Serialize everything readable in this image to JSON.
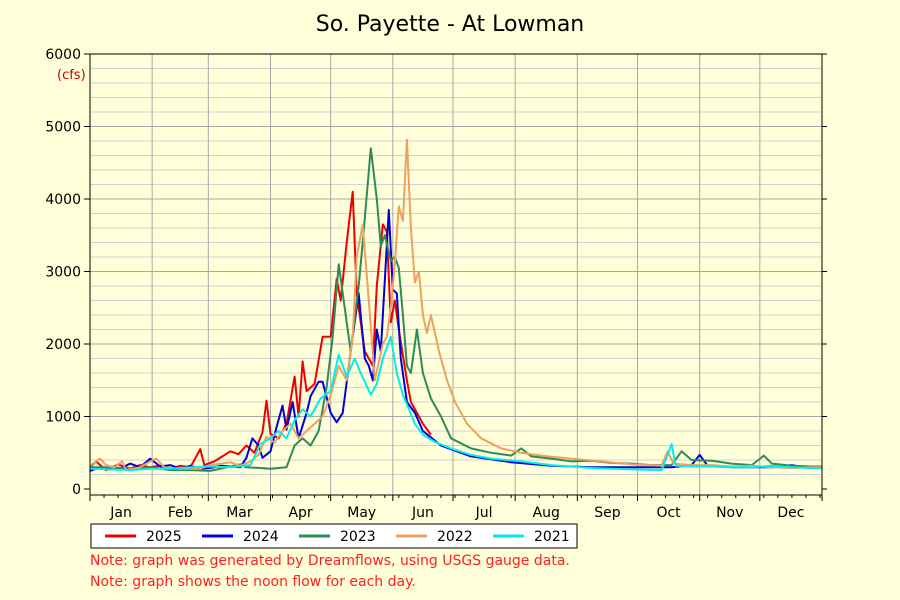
{
  "chart_data": {
    "type": "line",
    "title": "So. Payette - At Lowman",
    "ylabel": "(cfs)",
    "xlabel": "",
    "ylim": [
      0,
      6000
    ],
    "xlim": [
      0,
      365
    ],
    "yticks": [
      0,
      1000,
      2000,
      3000,
      4000,
      5000,
      6000
    ],
    "months": [
      "Jan",
      "Feb",
      "Mar",
      "Apr",
      "May",
      "Jun",
      "Jul",
      "Aug",
      "Sep",
      "Oct",
      "Nov",
      "Dec"
    ],
    "grid": true,
    "legend_position": "bottom-left",
    "series": [
      {
        "name": "2025",
        "color": "#ee0000",
        "points": [
          [
            0,
            300
          ],
          [
            3,
            380
          ],
          [
            8,
            260
          ],
          [
            14,
            340
          ],
          [
            20,
            280
          ],
          [
            25,
            330
          ],
          [
            30,
            300
          ],
          [
            35,
            320
          ],
          [
            40,
            280
          ],
          [
            45,
            320
          ],
          [
            50,
            300
          ],
          [
            55,
            550
          ],
          [
            57,
            330
          ],
          [
            62,
            380
          ],
          [
            66,
            450
          ],
          [
            70,
            520
          ],
          [
            74,
            480
          ],
          [
            78,
            600
          ],
          [
            82,
            500
          ],
          [
            86,
            780
          ],
          [
            88,
            1220
          ],
          [
            90,
            760
          ],
          [
            94,
            700
          ],
          [
            98,
            900
          ],
          [
            102,
            1550
          ],
          [
            104,
            1000
          ],
          [
            106,
            1760
          ],
          [
            108,
            1350
          ],
          [
            112,
            1450
          ],
          [
            116,
            2100
          ],
          [
            120,
            2100
          ],
          [
            123,
            2900
          ],
          [
            125,
            2600
          ],
          [
            128,
            3400
          ],
          [
            131,
            4100
          ],
          [
            133,
            2700
          ],
          [
            137,
            1900
          ],
          [
            141,
            1700
          ],
          [
            143,
            2800
          ],
          [
            146,
            3650
          ],
          [
            148,
            3550
          ],
          [
            150,
            2300
          ],
          [
            152,
            2600
          ],
          [
            154,
            2200
          ],
          [
            158,
            1500
          ],
          [
            160,
            1200
          ],
          [
            164,
            1000
          ],
          [
            166,
            900
          ],
          [
            170,
            750
          ]
        ]
      },
      {
        "name": "2024",
        "color": "#0000dd",
        "points": [
          [
            0,
            250
          ],
          [
            5,
            300
          ],
          [
            10,
            270
          ],
          [
            15,
            280
          ],
          [
            20,
            350
          ],
          [
            25,
            300
          ],
          [
            30,
            420
          ],
          [
            35,
            310
          ],
          [
            40,
            330
          ],
          [
            45,
            280
          ],
          [
            50,
            320
          ],
          [
            55,
            280
          ],
          [
            60,
            290
          ],
          [
            65,
            320
          ],
          [
            70,
            310
          ],
          [
            75,
            300
          ],
          [
            78,
            430
          ],
          [
            81,
            700
          ],
          [
            84,
            600
          ],
          [
            86,
            430
          ],
          [
            90,
            520
          ],
          [
            93,
            850
          ],
          [
            96,
            1150
          ],
          [
            98,
            820
          ],
          [
            101,
            1200
          ],
          [
            104,
            700
          ],
          [
            108,
            1050
          ],
          [
            110,
            1280
          ],
          [
            114,
            1480
          ],
          [
            116,
            1480
          ],
          [
            120,
            1050
          ],
          [
            123,
            920
          ],
          [
            126,
            1050
          ],
          [
            130,
            1900
          ],
          [
            134,
            2700
          ],
          [
            137,
            1800
          ],
          [
            139,
            1700
          ],
          [
            141,
            1500
          ],
          [
            143,
            2200
          ],
          [
            145,
            1900
          ],
          [
            149,
            3850
          ],
          [
            151,
            2750
          ],
          [
            153,
            2700
          ],
          [
            155,
            1800
          ],
          [
            158,
            1200
          ],
          [
            162,
            1050
          ],
          [
            166,
            800
          ],
          [
            175,
            600
          ],
          [
            190,
            450
          ],
          [
            210,
            370
          ],
          [
            230,
            320
          ],
          [
            250,
            300
          ],
          [
            270,
            300
          ],
          [
            290,
            300
          ],
          [
            300,
            330
          ],
          [
            304,
            470
          ],
          [
            308,
            320
          ],
          [
            320,
            300
          ],
          [
            330,
            300
          ],
          [
            340,
            300
          ],
          [
            350,
            330
          ],
          [
            356,
            300
          ],
          [
            365,
            310
          ]
        ]
      },
      {
        "name": "2023",
        "color": "#2e8b57",
        "points": [
          [
            0,
            300
          ],
          [
            10,
            300
          ],
          [
            20,
            280
          ],
          [
            30,
            300
          ],
          [
            40,
            260
          ],
          [
            50,
            260
          ],
          [
            60,
            250
          ],
          [
            70,
            310
          ],
          [
            75,
            340
          ],
          [
            78,
            300
          ],
          [
            85,
            290
          ],
          [
            90,
            280
          ],
          [
            98,
            300
          ],
          [
            102,
            600
          ],
          [
            106,
            700
          ],
          [
            110,
            600
          ],
          [
            114,
            800
          ],
          [
            118,
            1400
          ],
          [
            121,
            2100
          ],
          [
            124,
            3100
          ],
          [
            127,
            2500
          ],
          [
            130,
            1900
          ],
          [
            134,
            2800
          ],
          [
            136,
            3400
          ],
          [
            140,
            4700
          ],
          [
            143,
            4000
          ],
          [
            145,
            3350
          ],
          [
            147,
            3500
          ],
          [
            150,
            3150
          ],
          [
            152,
            3200
          ],
          [
            154,
            3050
          ],
          [
            156,
            2400
          ],
          [
            158,
            1700
          ],
          [
            160,
            1600
          ],
          [
            163,
            2200
          ],
          [
            166,
            1600
          ],
          [
            170,
            1250
          ],
          [
            175,
            1000
          ],
          [
            180,
            700
          ],
          [
            190,
            560
          ],
          [
            200,
            500
          ],
          [
            210,
            460
          ],
          [
            215,
            560
          ],
          [
            220,
            450
          ],
          [
            230,
            420
          ],
          [
            240,
            380
          ],
          [
            250,
            390
          ],
          [
            260,
            360
          ],
          [
            270,
            350
          ],
          [
            280,
            330
          ],
          [
            290,
            330
          ],
          [
            295,
            520
          ],
          [
            300,
            400
          ],
          [
            310,
            390
          ],
          [
            320,
            350
          ],
          [
            330,
            330
          ],
          [
            336,
            460
          ],
          [
            340,
            350
          ],
          [
            350,
            320
          ],
          [
            360,
            310
          ],
          [
            365,
            310
          ]
        ]
      },
      {
        "name": "2022",
        "color": "#f0a060",
        "points": [
          [
            0,
            320
          ],
          [
            5,
            420
          ],
          [
            8,
            330
          ],
          [
            12,
            300
          ],
          [
            16,
            380
          ],
          [
            18,
            260
          ],
          [
            25,
            300
          ],
          [
            30,
            380
          ],
          [
            33,
            420
          ],
          [
            37,
            300
          ],
          [
            45,
            280
          ],
          [
            55,
            280
          ],
          [
            60,
            330
          ],
          [
            70,
            370
          ],
          [
            75,
            320
          ],
          [
            80,
            380
          ],
          [
            84,
            470
          ],
          [
            88,
            720
          ],
          [
            92,
            640
          ],
          [
            96,
            800
          ],
          [
            100,
            900
          ],
          [
            104,
            700
          ],
          [
            108,
            800
          ],
          [
            112,
            900
          ],
          [
            116,
            1000
          ],
          [
            120,
            1300
          ],
          [
            124,
            1700
          ],
          [
            128,
            1500
          ],
          [
            131,
            2100
          ],
          [
            133,
            3200
          ],
          [
            136,
            3650
          ],
          [
            139,
            2600
          ],
          [
            142,
            1500
          ],
          [
            146,
            2000
          ],
          [
            148,
            2100
          ],
          [
            150,
            2500
          ],
          [
            152,
            3100
          ],
          [
            154,
            3900
          ],
          [
            156,
            3700
          ],
          [
            158,
            4820
          ],
          [
            160,
            3600
          ],
          [
            162,
            2850
          ],
          [
            164,
            3000
          ],
          [
            166,
            2400
          ],
          [
            168,
            2150
          ],
          [
            170,
            2400
          ],
          [
            174,
            1900
          ],
          [
            178,
            1500
          ],
          [
            182,
            1200
          ],
          [
            188,
            900
          ],
          [
            195,
            700
          ],
          [
            205,
            560
          ],
          [
            215,
            500
          ],
          [
            225,
            460
          ],
          [
            240,
            420
          ],
          [
            255,
            380
          ],
          [
            270,
            340
          ],
          [
            285,
            320
          ],
          [
            288,
            520
          ],
          [
            291,
            350
          ],
          [
            300,
            330
          ],
          [
            310,
            330
          ],
          [
            320,
            310
          ],
          [
            330,
            320
          ],
          [
            340,
            300
          ],
          [
            350,
            290
          ],
          [
            360,
            300
          ],
          [
            365,
            300
          ]
        ]
      },
      {
        "name": "2021",
        "color": "#00eeee",
        "points": [
          [
            0,
            280
          ],
          [
            10,
            270
          ],
          [
            20,
            260
          ],
          [
            30,
            280
          ],
          [
            40,
            280
          ],
          [
            50,
            300
          ],
          [
            60,
            310
          ],
          [
            70,
            300
          ],
          [
            80,
            330
          ],
          [
            85,
            620
          ],
          [
            90,
            700
          ],
          [
            94,
            800
          ],
          [
            98,
            700
          ],
          [
            102,
            950
          ],
          [
            106,
            1100
          ],
          [
            110,
            1000
          ],
          [
            115,
            1250
          ],
          [
            120,
            1350
          ],
          [
            124,
            1850
          ],
          [
            128,
            1550
          ],
          [
            132,
            1800
          ],
          [
            135,
            1600
          ],
          [
            140,
            1300
          ],
          [
            143,
            1450
          ],
          [
            146,
            1800
          ],
          [
            150,
            2100
          ],
          [
            153,
            1600
          ],
          [
            156,
            1300
          ],
          [
            159,
            1100
          ],
          [
            162,
            900
          ],
          [
            166,
            750
          ],
          [
            172,
            650
          ],
          [
            180,
            560
          ],
          [
            190,
            470
          ],
          [
            200,
            420
          ],
          [
            215,
            380
          ],
          [
            230,
            330
          ],
          [
            250,
            290
          ],
          [
            270,
            270
          ],
          [
            285,
            260
          ],
          [
            290,
            620
          ],
          [
            292,
            320
          ],
          [
            300,
            310
          ],
          [
            310,
            310
          ],
          [
            320,
            300
          ],
          [
            330,
            300
          ],
          [
            340,
            320
          ],
          [
            350,
            300
          ],
          [
            360,
            290
          ],
          [
            365,
            290
          ]
        ]
      }
    ]
  },
  "notes": {
    "note1": "Note: graph was generated by Dreamflows, using USGS gauge data.",
    "note2": "Note: graph shows the noon flow for each day."
  }
}
